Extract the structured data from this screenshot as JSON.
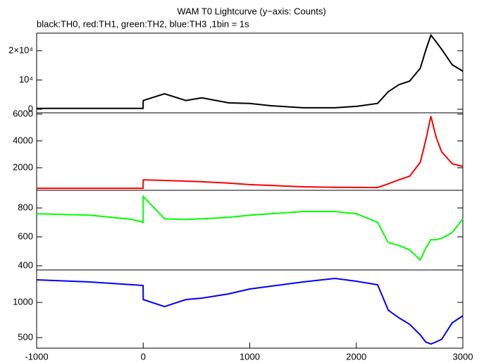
{
  "chart_data": [
    {
      "type": "line",
      "title": "WAM T0 Lightcurve (y−axis: Counts)",
      "subtitle": "black:TH0, red:TH1, green:TH2, blue:TH3 ,1bin = 1s",
      "x": [
        -1000,
        -500,
        -100,
        -1,
        0,
        200,
        400,
        550,
        800,
        1000,
        1200,
        1500,
        1800,
        2000,
        2200,
        2300,
        2400,
        2500,
        2600,
        2650,
        2700,
        2750,
        2800,
        2900,
        3000
      ],
      "series": [
        {
          "color": "#000000",
          "values": [
            300,
            300,
            300,
            300,
            3000,
            5300,
            3000,
            3900,
            2200,
            2000,
            1200,
            500,
            500,
            1000,
            2000,
            6000,
            8400,
            9600,
            14000,
            20000,
            25300,
            23000,
            20500,
            15200,
            13000
          ]
        }
      ],
      "xlim": [
        -1000,
        3000
      ],
      "ylim": [
        -1200,
        26000
      ],
      "yticks": [
        {
          "value": 20000,
          "label": "2×10⁴"
        },
        {
          "value": 10000,
          "label": "10⁴"
        },
        0
      ]
    },
    {
      "type": "line",
      "x": [
        -1000,
        -500,
        -100,
        -1,
        0,
        200,
        400,
        550,
        800,
        1000,
        1200,
        1500,
        1800,
        2000,
        2200,
        2300,
        2400,
        2500,
        2600,
        2650,
        2700,
        2750,
        2800,
        2900,
        3000
      ],
      "series": [
        {
          "color": "#ff0000",
          "values": [
            470,
            470,
            470,
            470,
            1100,
            1050,
            1000,
            950,
            850,
            740,
            680,
            580,
            540,
            530,
            520,
            800,
            1100,
            1370,
            2400,
            4000,
            5840,
            4260,
            3200,
            2300,
            2100
          ]
        }
      ],
      "xlim": [
        -1000,
        3000
      ],
      "ylim": [
        316,
        6100
      ],
      "yticks": [
        6000,
        4000,
        2000
      ]
    },
    {
      "type": "line",
      "x": [
        -1000,
        -500,
        -100,
        -1,
        0,
        200,
        400,
        550,
        800,
        1000,
        1200,
        1500,
        1800,
        2000,
        2200,
        2300,
        2400,
        2500,
        2600,
        2650,
        2700,
        2750,
        2800,
        2900,
        3000
      ],
      "series": [
        {
          "color": "#00ff00",
          "values": [
            760,
            750,
            720,
            700,
            880,
            725,
            720,
            725,
            735,
            750,
            760,
            775,
            775,
            760,
            700,
            560,
            540,
            510,
            440,
            520,
            580,
            580,
            590,
            630,
            725
          ]
        }
      ],
      "xlim": [
        -1000,
        3000
      ],
      "ylim": [
        371,
        922
      ],
      "yticks": [
        800,
        600,
        400
      ]
    },
    {
      "type": "line",
      "x": [
        -1000,
        -500,
        -100,
        -1,
        0,
        200,
        400,
        550,
        800,
        1000,
        1200,
        1500,
        1800,
        2000,
        2200,
        2300,
        2400,
        2500,
        2600,
        2650,
        2700,
        2750,
        2800,
        2900,
        3000
      ],
      "series": [
        {
          "color": "#0000ff",
          "values": [
            1320,
            1290,
            1250,
            1240,
            1040,
            940,
            1040,
            1060,
            1120,
            1190,
            1230,
            1290,
            1340,
            1300,
            1250,
            890,
            780,
            690,
            540,
            440,
            410,
            440,
            475,
            710,
            810
          ]
        }
      ],
      "xlim": [
        -1000,
        3000
      ],
      "ylim": [
        350,
        1460
      ],
      "yticks": [
        1000,
        500
      ],
      "xticks": [
        -1000,
        0,
        1000,
        2000,
        3000
      ]
    }
  ]
}
